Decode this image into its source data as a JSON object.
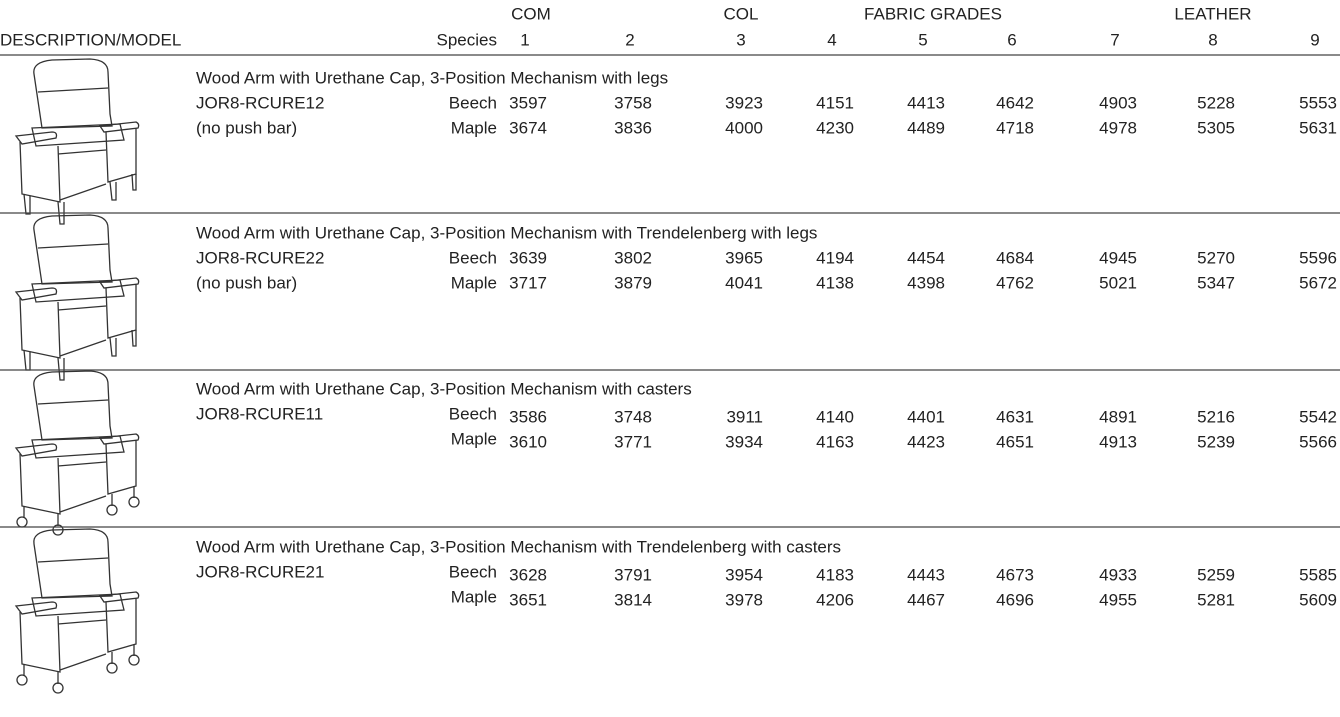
{
  "header": {
    "groups": [
      "COM",
      "COL",
      "FABRIC GRADES",
      "LEATHER"
    ],
    "description_label": "DESCRIPTION/MODEL",
    "species_label": "Species",
    "grades": [
      1,
      2,
      3,
      4,
      5,
      6,
      7,
      8,
      9
    ]
  },
  "products": [
    {
      "description": "Wood Arm with Urethane Cap, 3-Position Mechanism with legs",
      "model": "JOR8-RCURE12",
      "note": "(no push bar)",
      "rows": [
        {
          "species": "Beech",
          "prices": [
            3597,
            3758,
            3923,
            4151,
            4413,
            4642,
            4903,
            5228,
            5553
          ]
        },
        {
          "species": "Maple",
          "prices": [
            3674,
            3836,
            4000,
            4230,
            4489,
            4718,
            4978,
            5305,
            5631
          ]
        }
      ]
    },
    {
      "description": "Wood Arm with Urethane Cap, 3-Position Mechanism with Trendelenberg with legs",
      "model": "JOR8-RCURE22",
      "note": "(no push bar)",
      "rows": [
        {
          "species": "Beech",
          "prices": [
            3639,
            3802,
            3965,
            4194,
            4454,
            4684,
            4945,
            5270,
            5596
          ]
        },
        {
          "species": "Maple",
          "prices": [
            3717,
            3879,
            4041,
            4138,
            4398,
            4762,
            5021,
            5347,
            5672
          ]
        }
      ]
    },
    {
      "description": "Wood Arm with Urethane Cap, 3-Position Mechanism with casters",
      "model": "JOR8-RCURE11",
      "rows": [
        {
          "species": "Beech",
          "prices": [
            3586,
            3748,
            3911,
            4140,
            4401,
            4631,
            4891,
            5216,
            5542
          ]
        },
        {
          "species": "Maple",
          "prices": [
            3610,
            3771,
            3934,
            4163,
            4423,
            4651,
            4913,
            5239,
            5566
          ]
        }
      ]
    },
    {
      "description": "Wood Arm with Urethane Cap, 3-Position Mechanism with Trendelenberg with casters",
      "model": "JOR8-RCURE21",
      "rows": [
        {
          "species": "Beech",
          "prices": [
            3628,
            3791,
            3954,
            4183,
            4443,
            4673,
            4933,
            5259,
            5585
          ]
        },
        {
          "species": "Maple",
          "prices": [
            3651,
            3814,
            3978,
            4206,
            4467,
            4696,
            4955,
            5281,
            5609
          ]
        }
      ]
    }
  ]
}
